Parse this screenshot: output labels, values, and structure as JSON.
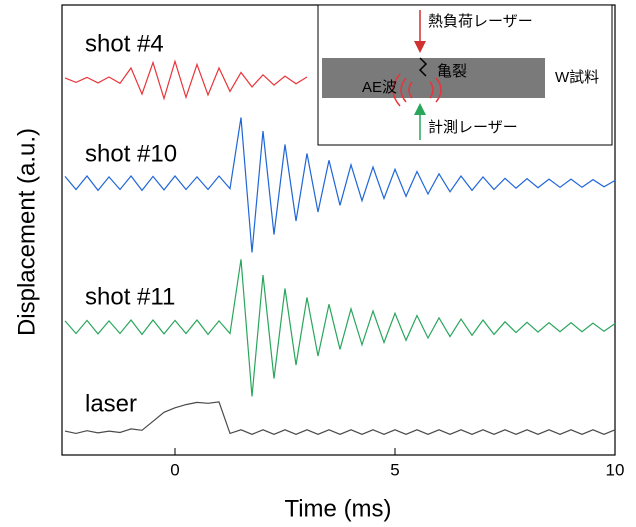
{
  "chart_data": {
    "type": "line",
    "xlabel": "Time (ms)",
    "ylabel": "Displacement (a.u.)",
    "xlim": [
      -2.5,
      10
    ],
    "xticks": [
      0,
      5,
      10
    ],
    "ylim": [
      0,
      10
    ],
    "x": [
      -2.5,
      -2.25,
      -2,
      -1.75,
      -1.5,
      -1.25,
      -1,
      -0.75,
      -0.5,
      -0.25,
      0,
      0.25,
      0.5,
      0.75,
      1,
      1.25,
      1.5,
      1.75,
      2,
      2.25,
      2.5,
      2.75,
      3,
      3.25,
      3.5,
      3.75,
      4,
      4.25,
      4.5,
      4.75,
      5,
      5.25,
      5.5,
      5.75,
      6,
      6.25,
      6.5,
      6.75,
      7,
      7.25,
      7.5,
      7.75,
      8,
      8.25,
      8.5,
      8.75,
      9,
      9.25,
      9.5,
      9.75,
      10
    ],
    "series": [
      {
        "name": "shot #4",
        "color": "#e8343a",
        "values": [
          8.38,
          8.28,
          8.39,
          8.27,
          8.4,
          8.26,
          8.6,
          8.02,
          8.72,
          7.92,
          8.75,
          7.95,
          8.68,
          8.0,
          8.6,
          8.08,
          8.5,
          8.18,
          8.45,
          8.22,
          8.42,
          8.25,
          8.4,
          null,
          null,
          null,
          null,
          null,
          null,
          null,
          null,
          null,
          null,
          null,
          null,
          null,
          null,
          null,
          null,
          null,
          null,
          null,
          null,
          null,
          null,
          null,
          null,
          null,
          null,
          null,
          null
        ]
      },
      {
        "name": "shot #10",
        "color": "#1f66d8",
        "values": [
          6.19,
          5.9,
          6.2,
          5.88,
          6.18,
          5.9,
          6.2,
          5.88,
          6.19,
          5.89,
          6.2,
          5.9,
          6.18,
          5.9,
          6.2,
          5.92,
          7.5,
          4.5,
          7.2,
          4.9,
          6.9,
          5.2,
          6.7,
          5.4,
          6.55,
          5.55,
          6.45,
          5.65,
          6.4,
          5.7,
          6.35,
          5.75,
          6.3,
          5.8,
          6.25,
          5.85,
          6.2,
          5.88,
          6.18,
          5.9,
          6.15,
          5.93,
          6.14,
          5.94,
          6.13,
          5.95,
          6.13,
          5.95,
          6.12,
          5.96,
          6.1
        ]
      },
      {
        "name": "shot #11",
        "color": "#2aa65c",
        "values": [
          2.98,
          2.7,
          2.99,
          2.69,
          2.98,
          2.7,
          3.0,
          2.68,
          3.0,
          2.69,
          2.99,
          2.7,
          3.0,
          2.68,
          2.98,
          2.7,
          4.35,
          1.3,
          4.0,
          1.7,
          3.7,
          2.0,
          3.5,
          2.2,
          3.35,
          2.35,
          3.25,
          2.45,
          3.2,
          2.5,
          3.15,
          2.55,
          3.1,
          2.6,
          3.05,
          2.63,
          3.02,
          2.66,
          3.0,
          2.68,
          2.96,
          2.72,
          2.95,
          2.73,
          2.94,
          2.74,
          2.94,
          2.74,
          2.93,
          2.75,
          2.92
        ]
      },
      {
        "name": "laser",
        "color": "#4a4a4a",
        "values": [
          0.53,
          0.48,
          0.54,
          0.49,
          0.53,
          0.5,
          0.58,
          0.55,
          0.75,
          0.95,
          1.05,
          1.12,
          1.17,
          1.15,
          1.18,
          0.48,
          0.56,
          0.46,
          0.56,
          0.46,
          0.56,
          0.46,
          0.56,
          0.46,
          0.56,
          0.46,
          0.56,
          0.46,
          0.56,
          0.46,
          0.56,
          0.46,
          0.56,
          0.46,
          0.56,
          0.46,
          0.56,
          0.46,
          0.56,
          0.46,
          0.56,
          0.46,
          0.56,
          0.46,
          0.56,
          0.46,
          0.56,
          0.46,
          0.56,
          0.46,
          0.56
        ]
      }
    ],
    "inset": {
      "top_laser": "熱負荷レーザー",
      "crack": "亀裂",
      "wave": "AE波",
      "sample": "W試料",
      "bottom_laser": "計測レーザー"
    }
  }
}
